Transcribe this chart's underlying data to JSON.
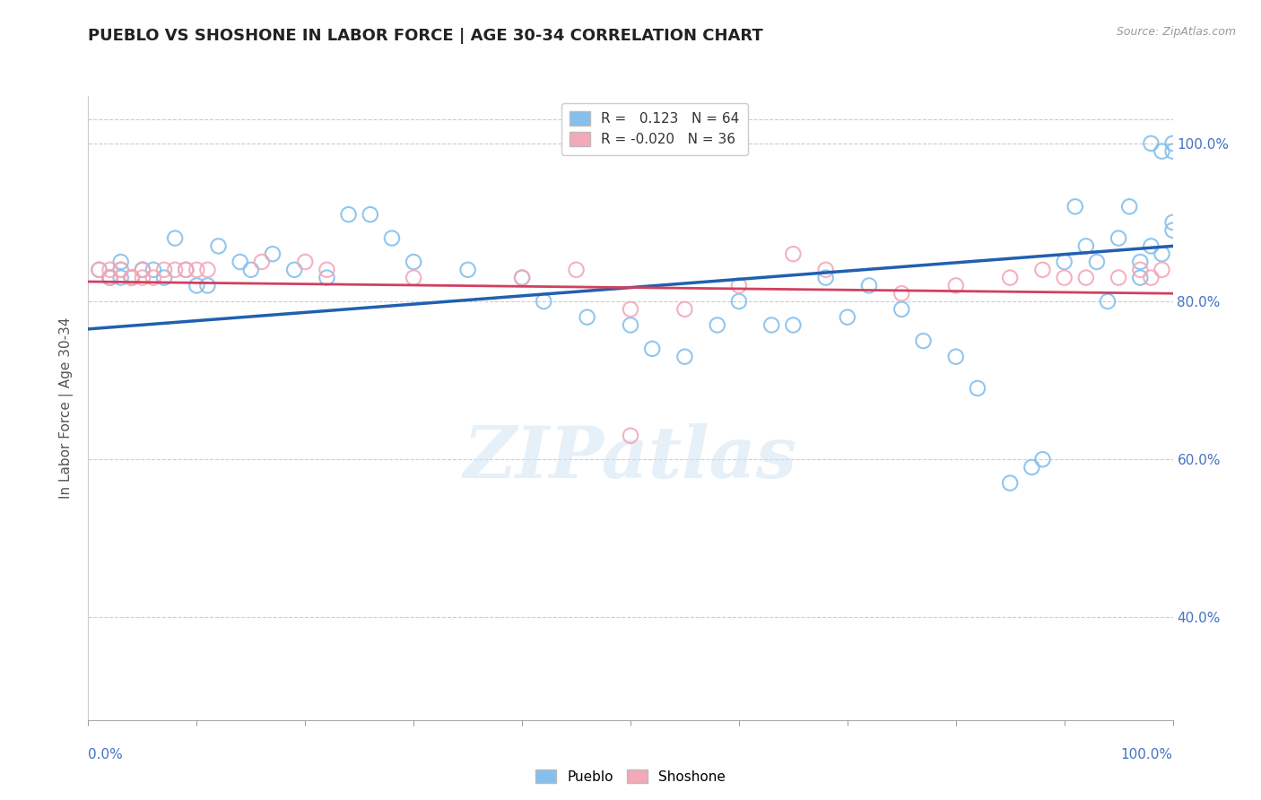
{
  "title": "PUEBLO VS SHOSHONE IN LABOR FORCE | AGE 30-34 CORRELATION CHART",
  "source": "Source: ZipAtlas.com",
  "ylabel": "In Labor Force | Age 30-34",
  "xlim": [
    0.0,
    1.0
  ],
  "ylim": [
    0.27,
    1.06
  ],
  "yticks": [
    0.4,
    0.6,
    0.8,
    1.0
  ],
  "ytick_labels": [
    "40.0%",
    "60.0%",
    "80.0%",
    "100.0%"
  ],
  "grid_color": "#cccccc",
  "background_color": "#ffffff",
  "pueblo_color": "#85C0EC",
  "shoshone_color": "#F4A8B8",
  "pueblo_line_color": "#2060B0",
  "shoshone_line_color": "#D04060",
  "legend_R_pueblo": "0.123",
  "legend_N_pueblo": "64",
  "legend_R_shoshone": "-0.020",
  "legend_N_shoshone": "36",
  "watermark": "ZIPatlas",
  "pueblo_line_x0": 0.0,
  "pueblo_line_y0": 0.765,
  "pueblo_line_x1": 1.0,
  "pueblo_line_y1": 0.87,
  "shoshone_line_x0": 0.0,
  "shoshone_line_y0": 0.825,
  "shoshone_line_x1": 1.0,
  "shoshone_line_y1": 0.81,
  "pueblo_x": [
    0.01,
    0.02,
    0.02,
    0.03,
    0.03,
    0.03,
    0.04,
    0.04,
    0.05,
    0.05,
    0.06,
    0.07,
    0.08,
    0.09,
    0.1,
    0.11,
    0.12,
    0.14,
    0.15,
    0.17,
    0.19,
    0.22,
    0.24,
    0.26,
    0.28,
    0.3,
    0.35,
    0.4,
    0.42,
    0.46,
    0.5,
    0.52,
    0.55,
    0.58,
    0.6,
    0.63,
    0.65,
    0.68,
    0.7,
    0.72,
    0.75,
    0.77,
    0.8,
    0.82,
    0.85,
    0.87,
    0.88,
    0.9,
    0.91,
    0.92,
    0.93,
    0.94,
    0.95,
    0.96,
    0.97,
    0.97,
    0.98,
    0.98,
    0.99,
    0.99,
    1.0,
    1.0,
    1.0,
    1.0
  ],
  "pueblo_y": [
    0.84,
    0.83,
    0.83,
    0.85,
    0.84,
    0.83,
    0.83,
    0.83,
    0.84,
    0.84,
    0.84,
    0.83,
    0.88,
    0.84,
    0.82,
    0.82,
    0.87,
    0.85,
    0.84,
    0.86,
    0.84,
    0.83,
    0.91,
    0.91,
    0.88,
    0.85,
    0.84,
    0.83,
    0.8,
    0.78,
    0.77,
    0.74,
    0.73,
    0.77,
    0.8,
    0.77,
    0.77,
    0.83,
    0.78,
    0.82,
    0.79,
    0.75,
    0.73,
    0.69,
    0.57,
    0.59,
    0.6,
    0.85,
    0.92,
    0.87,
    0.85,
    0.8,
    0.88,
    0.92,
    0.85,
    0.83,
    0.87,
    1.0,
    0.99,
    0.86,
    0.99,
    1.0,
    0.9,
    0.89
  ],
  "shoshone_x": [
    0.01,
    0.02,
    0.02,
    0.03,
    0.04,
    0.04,
    0.05,
    0.05,
    0.06,
    0.07,
    0.08,
    0.09,
    0.1,
    0.11,
    0.16,
    0.2,
    0.22,
    0.3,
    0.4,
    0.45,
    0.5,
    0.55,
    0.6,
    0.65,
    0.68,
    0.75,
    0.8,
    0.85,
    0.88,
    0.9,
    0.92,
    0.95,
    0.97,
    0.98,
    0.99,
    0.5
  ],
  "shoshone_y": [
    0.84,
    0.84,
    0.83,
    0.84,
    0.83,
    0.83,
    0.84,
    0.83,
    0.83,
    0.84,
    0.84,
    0.84,
    0.84,
    0.84,
    0.85,
    0.85,
    0.84,
    0.83,
    0.83,
    0.84,
    0.79,
    0.79,
    0.82,
    0.86,
    0.84,
    0.81,
    0.82,
    0.83,
    0.84,
    0.83,
    0.83,
    0.83,
    0.84,
    0.83,
    0.84,
    0.63
  ]
}
